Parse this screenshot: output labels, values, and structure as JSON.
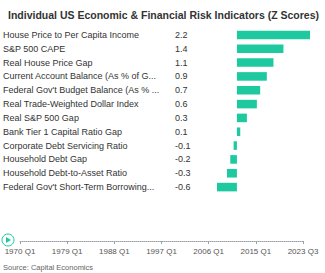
{
  "chart_data": {
    "type": "bar",
    "title": "Individual US Economic & Financial Risk Indicators (Z Scores)",
    "orientation": "horizontal",
    "categories": [
      "House Price to Per Capita Income",
      "S&P 500 CAPE",
      "Real House Price Gap",
      "Current Account Balance (As % of G...",
      "Federal Gov't Budget Balance (As % ...",
      "Real Trade-Weighted Dollar Index",
      "Real S&P 500 Gap",
      "Bank Tier 1 Capital Ratio Gap",
      "Corporate Debt Servicing Ratio",
      "Household Debt Gap",
      "Household Debt-to-Asset Ratio",
      "Federal Gov't Short-Term Borrowing..."
    ],
    "values": [
      2.2,
      1.4,
      1.1,
      0.9,
      0.7,
      0.6,
      0.3,
      0.1,
      -0.1,
      -0.2,
      -0.3,
      -0.6
    ],
    "color": "#1ec9a0",
    "data_labels": true,
    "xlim": [
      -0.6,
      2.2
    ],
    "xticks": [],
    "tick_labels": false,
    "grid": false,
    "timeline": [
      "1970 Q1",
      "1979 Q1",
      "1988 Q1",
      "1997 Q1",
      "2006 Q1",
      "2015 Q1",
      "2023 Q3"
    ],
    "source": "Source: Capital Economics"
  }
}
